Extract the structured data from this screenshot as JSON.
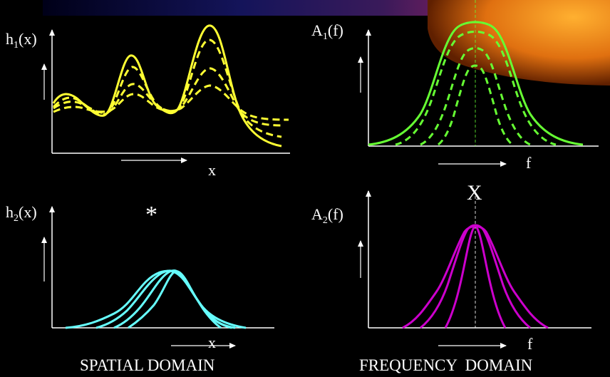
{
  "colors": {
    "background": "#000000",
    "spatial_curves": "#ffff33",
    "cyan_curves": "#66ffff",
    "green_curves": "#66ff33",
    "magenta_curves": "#cc00cc",
    "axes": "#ffffff",
    "banner_left": "#0a0a3a",
    "banner_right": "#ff8800"
  },
  "panels": {
    "h1": {
      "label_main": "h",
      "label_sub": "1",
      "label_arg": "(x)",
      "axis_label": "x"
    },
    "a1": {
      "label_main": "A",
      "label_sub": "1",
      "label_arg": "(f)",
      "axis_label": "f"
    },
    "h2": {
      "label_main": "h",
      "label_sub": "2",
      "label_arg": "(x)",
      "axis_label": "x"
    },
    "a2": {
      "label_main": "A",
      "label_sub": "2",
      "label_arg": "(f)",
      "axis_label": "f"
    }
  },
  "operators": {
    "convolution": "*",
    "multiplication": "X"
  },
  "captions": {
    "spatial": "SPATIAL DOMAIN",
    "frequency": "FREQUENCY  DOMAIN"
  },
  "icons": [
    "arrow-up-icon",
    "arrow-right-icon"
  ]
}
